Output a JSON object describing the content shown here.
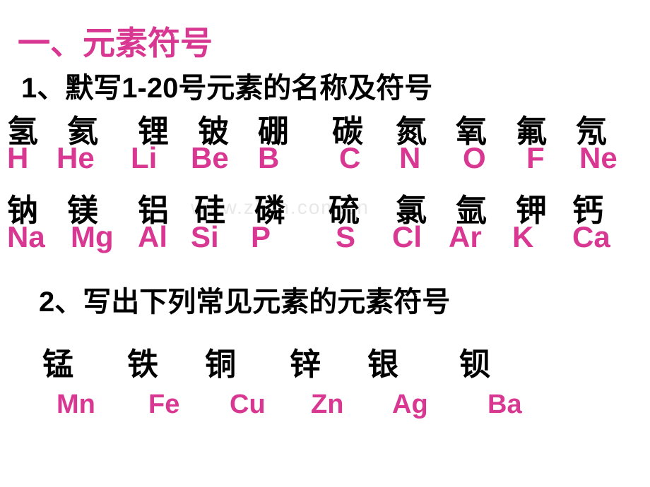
{
  "title": "一、元素符号",
  "subtitle1_prefix": "1",
  "subtitle1_text": "、默写",
  "subtitle1_num": "1-20",
  "subtitle1_suffix": "号元素的名称及符号",
  "row1_cn": [
    "氢",
    "氦",
    "锂",
    "铍",
    "硼",
    "碳",
    "氮",
    "氧",
    "氟",
    "氖"
  ],
  "row1_sym": [
    "H",
    "He",
    "Li",
    "Be",
    "B",
    "C",
    "N",
    "O",
    "F",
    "Ne"
  ],
  "row2_cn": [
    "钠",
    "镁",
    "铝",
    "硅",
    "磷",
    "硫",
    "氯",
    "氩",
    "钾",
    "钙"
  ],
  "row2_sym": [
    "Na",
    "Mg",
    "Al",
    "Si",
    "P",
    "S",
    "Cl",
    "Ar",
    "K",
    "Ca"
  ],
  "subtitle2_prefix": "2",
  "subtitle2_text": "、写出下列常见元素的元素符号",
  "row3_cn": [
    "锰",
    "铁",
    "铜",
    "锌",
    "银",
    "钡"
  ],
  "row3_sym": [
    "Mn",
    "Fe",
    "Cu",
    "Zn",
    "Ag",
    "Ba"
  ],
  "watermark": "www.zixin.com.cn",
  "colors": {
    "accent": "#d83892",
    "text": "#000000",
    "background": "#ffffff",
    "watermark": "#e8e8e8"
  },
  "row1_widths": [
    85,
    100,
    85,
    85,
    105,
    90,
    85,
    85,
    85,
    80
  ],
  "row1_sym_widths": [
    70,
    105,
    85,
    95,
    115,
    85,
    90,
    90,
    75,
    80
  ],
  "row2_widths": [
    85,
    100,
    80,
    85,
    105,
    95,
    85,
    85,
    80,
    80
  ],
  "row2_sym_widths": [
    90,
    95,
    75,
    85,
    120,
    80,
    80,
    90,
    85,
    80
  ],
  "row3_widths": [
    120,
    110,
    120,
    110,
    130,
    100
  ],
  "row3_sym_widths": [
    130,
    115,
    115,
    115,
    135,
    100
  ]
}
